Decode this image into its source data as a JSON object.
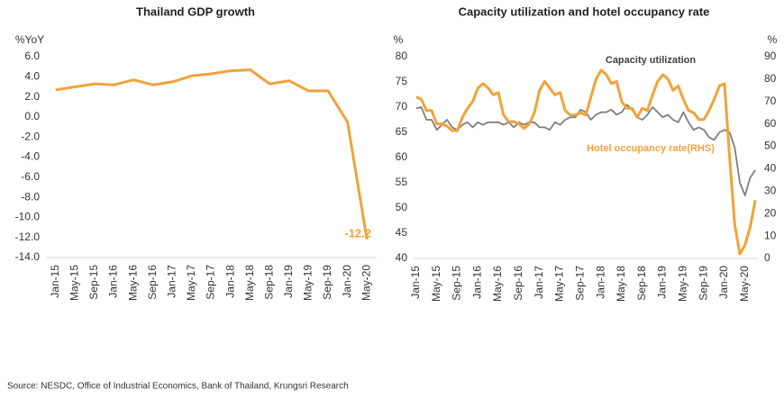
{
  "chart_data": [
    {
      "type": "line",
      "title": "Thailand GDP growth",
      "y_label": "%YoY",
      "categories": [
        "Jan-15",
        "May-15",
        "Sep-15",
        "Jan-16",
        "May-16",
        "Sep-16",
        "Jan-17",
        "May-17",
        "Sep-17",
        "Jan-18",
        "May-18",
        "Sep-18",
        "Jan-19",
        "May-19",
        "Sep-19",
        "Jan-20",
        "May-20"
      ],
      "values": [
        2.7,
        3.0,
        3.3,
        3.2,
        3.7,
        3.2,
        3.5,
        4.1,
        4.3,
        4.6,
        4.7,
        3.3,
        3.6,
        2.6,
        2.6,
        -0.5,
        -12.2
      ],
      "value_labels": [
        null,
        null,
        null,
        null,
        null,
        null,
        null,
        null,
        null,
        null,
        null,
        null,
        null,
        null,
        null,
        null,
        "-12.2"
      ],
      "color": "#f2a23a",
      "ylim": [
        -14,
        6
      ],
      "yticks": [
        {
          "value": 6,
          "label": "6.0"
        },
        {
          "value": 4,
          "label": "4.0"
        },
        {
          "value": 2,
          "label": "2.0"
        },
        {
          "value": 0,
          "label": "0.0"
        },
        {
          "value": -2,
          "label": "-2.0"
        },
        {
          "value": -4,
          "label": "-4.0"
        },
        {
          "value": -6,
          "label": "-6.0"
        },
        {
          "value": -8,
          "label": "-8.0"
        },
        {
          "value": -10,
          "label": "-10.0"
        },
        {
          "value": -12,
          "label": "-12.0"
        },
        {
          "value": -14,
          "label": "-14.0"
        }
      ]
    },
    {
      "type": "line",
      "title": "Capacity utilization and hotel occupancy rate",
      "y_label": "%",
      "y2_label": "%",
      "categories": [
        "Jan-15",
        null,
        null,
        null,
        "May-15",
        null,
        null,
        null,
        "Sep-15",
        null,
        null,
        null,
        "Jan-16",
        null,
        null,
        null,
        "May-16",
        null,
        null,
        null,
        "Sep-16",
        null,
        null,
        null,
        "Jan-17",
        null,
        null,
        null,
        "May-17",
        null,
        null,
        null,
        "Sep-17",
        null,
        null,
        null,
        "Jan-18",
        null,
        null,
        null,
        "May-18",
        null,
        null,
        null,
        "Sep-18",
        null,
        null,
        null,
        "Jan-19",
        null,
        null,
        null,
        "May-19",
        null,
        null,
        null,
        "Sep-19",
        null,
        null,
        null,
        "Jan-20",
        null,
        null,
        null,
        "May-20",
        null,
        null
      ],
      "series": [
        {
          "name": "Capacity utilization",
          "color": "#7f7f7f",
          "values": [
            69.8,
            70,
            67.5,
            67.5,
            65.5,
            66.5,
            67.5,
            66,
            65.5,
            66.5,
            67,
            66,
            67,
            66.5,
            67,
            67,
            67,
            66.5,
            67,
            66,
            67,
            66.5,
            67,
            67,
            66,
            66,
            65.5,
            67,
            66.5,
            67.5,
            68,
            68,
            69.5,
            69,
            67.5,
            68.5,
            69,
            69,
            69.5,
            68.5,
            69,
            70.5,
            69.5,
            68,
            67.5,
            68.5,
            70,
            69,
            68,
            68.5,
            67.5,
            67,
            69,
            67,
            65.5,
            66,
            65.5,
            64,
            63.5,
            65,
            65.5,
            65,
            62,
            55,
            52.5,
            56,
            57.5
          ]
        },
        {
          "name": "Hotel occupancy rate(RHS)",
          "color": "#f2a23a",
          "axis": "y2",
          "values": [
            72,
            71,
            66,
            66,
            60,
            60,
            59,
            57,
            57,
            63,
            67,
            70,
            76,
            78,
            76,
            73,
            74,
            64,
            61,
            61,
            60,
            58,
            60,
            65,
            75,
            79,
            76,
            73,
            74,
            66,
            64,
            64,
            65,
            64,
            72,
            80,
            84,
            82,
            78,
            79,
            70,
            67,
            67,
            63,
            67,
            66,
            73,
            79,
            82,
            80,
            75,
            77,
            71,
            66,
            65,
            62,
            62,
            66,
            71,
            77,
            78,
            45,
            15,
            2,
            6,
            14,
            26
          ]
        }
      ],
      "ylim": [
        40,
        80
      ],
      "yticks": [
        40,
        45,
        50,
        55,
        60,
        65,
        70,
        75,
        80
      ],
      "y2lim": [
        0,
        90
      ],
      "y2ticks": [
        0,
        10,
        20,
        30,
        40,
        50,
        60,
        70,
        80,
        90
      ]
    }
  ],
  "source": "Source: NESDC, Office of Industrial Economics, Bank of Thailand, Krungsri Research"
}
